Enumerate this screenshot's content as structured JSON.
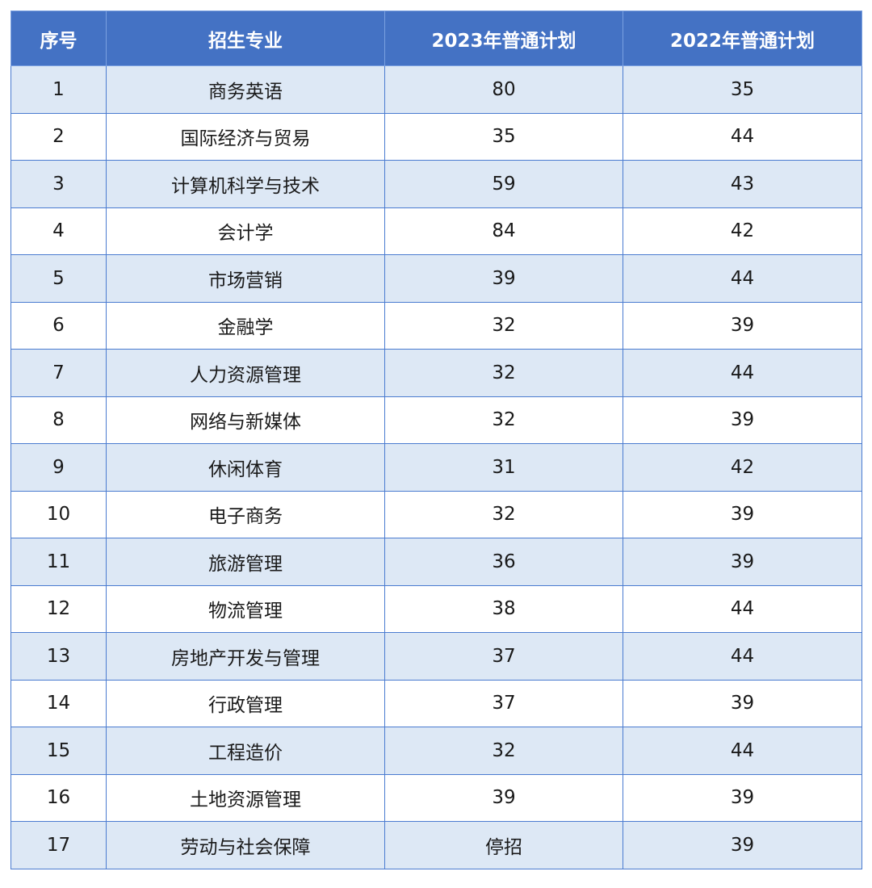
{
  "table": {
    "headers": [
      "序号",
      "招生专业",
      "2023年普通计划",
      "2022年普通计划"
    ],
    "rows": [
      [
        "1",
        "商务英语",
        "80",
        "35"
      ],
      [
        "2",
        "国际经济与贸易",
        "35",
        "44"
      ],
      [
        "3",
        "计算机科学与技术",
        "59",
        "43"
      ],
      [
        "4",
        "会计学",
        "84",
        "42"
      ],
      [
        "5",
        "市场营销",
        "39",
        "44"
      ],
      [
        "6",
        "金融学",
        "32",
        "39"
      ],
      [
        "7",
        "人力资源管理",
        "32",
        "44"
      ],
      [
        "8",
        "网络与新媒体",
        "32",
        "39"
      ],
      [
        "9",
        "休闲体育",
        "31",
        "42"
      ],
      [
        "10",
        "电子商务",
        "32",
        "39"
      ],
      [
        "11",
        "旅游管理",
        "36",
        "39"
      ],
      [
        "12",
        "物流管理",
        "38",
        "44"
      ],
      [
        "13",
        "房地产开发与管理",
        "37",
        "44"
      ],
      [
        "14",
        "行政管理",
        "37",
        "39"
      ],
      [
        "15",
        "工程造价",
        "32",
        "44"
      ],
      [
        "16",
        "土地资源管理",
        "39",
        "39"
      ],
      [
        "17",
        "劳动与社会保障",
        "停招",
        "39"
      ]
    ]
  },
  "colors": {
    "header_bg": "#4472c4",
    "row_alt_bg": "#dde8f5",
    "border": "#4a7bd0"
  }
}
